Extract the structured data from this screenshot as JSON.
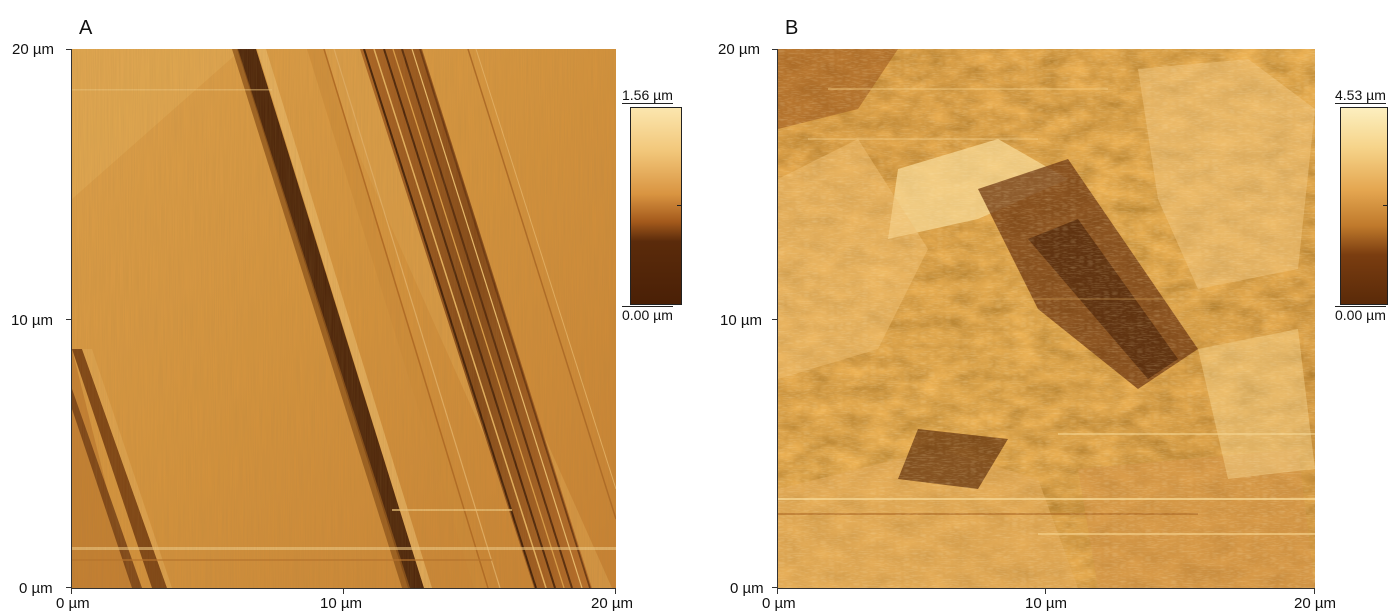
{
  "panels": [
    {
      "letter": "A",
      "y_ticks": [
        "20 µm",
        "10 µm",
        "0 µm"
      ],
      "x_ticks": [
        "0 µm",
        "10 µm",
        "20 µm"
      ],
      "colorbar": {
        "max_label": "1.56 µm",
        "min_label": "0.00 µm"
      }
    },
    {
      "letter": "B",
      "y_ticks": [
        "20 µm",
        "10 µm",
        "0 µm"
      ],
      "x_ticks": [
        "0 µm",
        "10 µm",
        "20 µm"
      ],
      "colorbar": {
        "max_label": "4.53 µm",
        "min_label": "0.00 µm"
      }
    }
  ],
  "colors": {
    "surface_dark": "#5a2f0d",
    "surface_mid": "#c7832e",
    "surface_light": "#f2cf84"
  }
}
